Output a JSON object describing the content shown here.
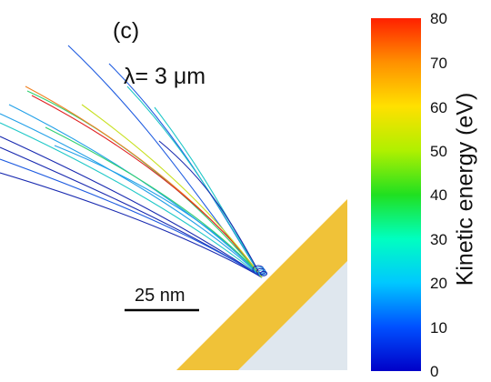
{
  "figure": {
    "panel_label": "(c)",
    "wavelength_label": "λ= 3 μm",
    "scale_bar_label": "25 nm"
  },
  "colorbar": {
    "title": "Kinetic energy (eV)",
    "min": 0,
    "max": 80,
    "ticks": [
      "80",
      "70",
      "60",
      "50",
      "40",
      "30",
      "20",
      "10",
      "0"
    ],
    "colormap": [
      "#0000c8",
      "#0050ff",
      "#00c8ff",
      "#00ffc0",
      "#20e020",
      "#b0f000",
      "#ffe000",
      "#ff9000",
      "#ff2000"
    ]
  },
  "colors": {
    "gold_layer": "#f0c238",
    "substrate": "#dfe7ee",
    "trajectories": [
      "#1a2bb0",
      "#1e5be0",
      "#22a0e8",
      "#20c8c8",
      "#30d070",
      "#c8e020",
      "#f08020",
      "#e02020"
    ]
  }
}
